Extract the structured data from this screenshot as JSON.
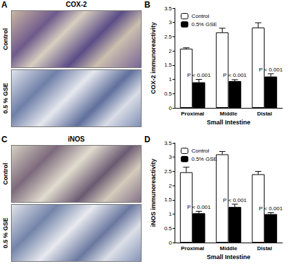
{
  "panels": [
    {
      "label": "A",
      "title": "COX-2",
      "rows": [
        "Control",
        "0.5 % GSE"
      ]
    },
    {
      "label": "C",
      "title": "iNOS",
      "rows": [
        "Control",
        "0.5 % GSE"
      ]
    }
  ],
  "chart_data": [
    {
      "panel": "B",
      "type": "bar",
      "y_label": "COX-2 immunoreactivity",
      "x_label": "Small Intestine",
      "categories": [
        "Proximal",
        "Middle",
        "Distal"
      ],
      "series": [
        {
          "name": "Control",
          "color": "#ffffff",
          "values": [
            2.08,
            2.65,
            2.82
          ],
          "errors": [
            0.03,
            0.15,
            0.17
          ]
        },
        {
          "name": "0.5% GSE",
          "color": "#000000",
          "values": [
            0.9,
            0.94,
            1.1
          ],
          "errors": [
            0.1,
            0.05,
            0.1
          ],
          "annotations": [
            "P < 0.001",
            "P < 0.001",
            "P < 0.001"
          ]
        }
      ],
      "ylim": [
        0,
        3.5
      ],
      "yticks": [
        0,
        0.5,
        1,
        1.5,
        2,
        2.5,
        3,
        3.5
      ],
      "legend": "upper left",
      "grid": false
    },
    {
      "panel": "D",
      "type": "bar",
      "y_label": "iNOS immunoreactivity",
      "x_label": "Small Intestine",
      "categories": [
        "Proximal",
        "Middle",
        "Distal"
      ],
      "series": [
        {
          "name": "Control",
          "color": "#ffffff",
          "values": [
            2.47,
            3.1,
            2.4
          ],
          "errors": [
            0.18,
            0.1,
            0.1
          ]
        },
        {
          "name": "0.5% GSE",
          "color": "#000000",
          "values": [
            1.03,
            1.25,
            1.0
          ],
          "errors": [
            0.07,
            0.1,
            0.05
          ],
          "annotations": [
            "P < 0.001",
            "P < 0.001",
            "P < 0.001"
          ]
        }
      ],
      "ylim": [
        0,
        3.5
      ],
      "yticks": [
        0,
        0.5,
        1,
        1.5,
        2,
        2.5,
        3,
        3.5
      ],
      "legend": "upper left",
      "grid": false
    }
  ]
}
